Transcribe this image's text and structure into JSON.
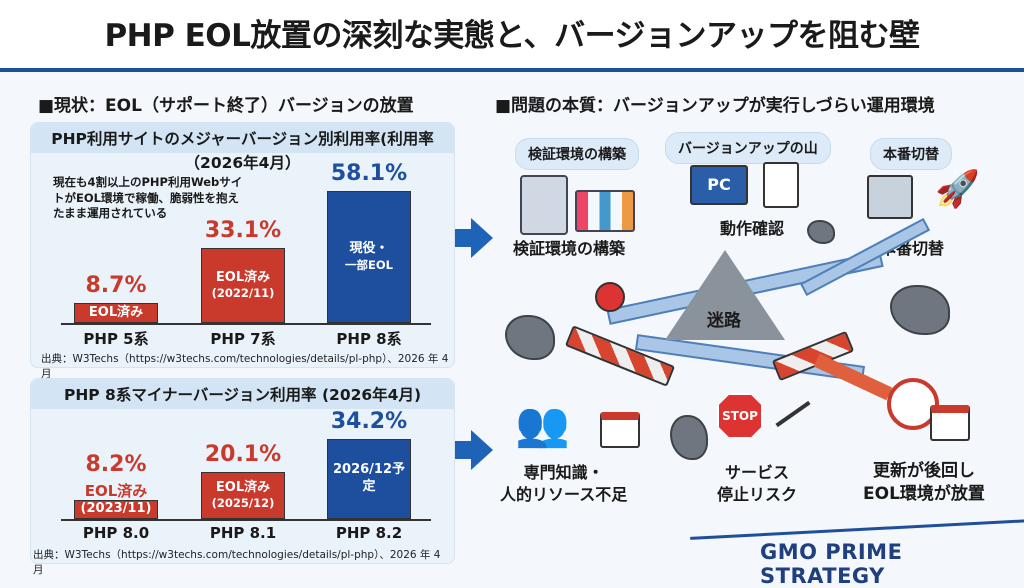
{
  "title": "PHP EOL放置の深刻な実態と、バージョンアップを阻む壁",
  "left": {
    "heading": "■現状：EOL（サポート終了）バージョンの放置",
    "note_lines": [
      "現在も4割以上のPHP利用Webサイ",
      "トがEOL環境で稼働、脆弱性を抱え",
      "たまま運用されている"
    ]
  },
  "right": {
    "heading": "■問題の本質：バージョンアップが実行しづらい運用環境",
    "pills": [
      "検証環境の構築",
      "バージョンアップの山",
      "本番切替"
    ],
    "labels": {
      "verify": "検証環境の構築",
      "check": "動作確認",
      "switch": "本番切替",
      "maze": "迷路",
      "pc": "PC",
      "stop": "STOP",
      "resource": [
        "専門知識・",
        "人的リソース不足"
      ],
      "service": [
        "サービス",
        "停止リスク"
      ],
      "postpone": [
        "更新が後回し",
        "EOL環境が放置"
      ]
    }
  },
  "footer": {
    "logo": "GMO PRIME STRATEGY"
  },
  "colors": {
    "eol": "#c93a2c",
    "current": "#1d4f9e",
    "accent": "#1f4f9b"
  },
  "chart_data": [
    {
      "type": "bar",
      "title_lines": [
        "PHP利用サイトのメジャーバージョン別利用率(利用率",
        "（2026年4月）"
      ],
      "categories": [
        "PHP 5系",
        "PHP 7系",
        "PHP 8系"
      ],
      "values": [
        8.7,
        33.1,
        58.1
      ],
      "value_labels": [
        "8.7%",
        "33.1%",
        "58.1%"
      ],
      "bar_labels": [
        [
          "EOL済み"
        ],
        [
          "EOL済み",
          "(2022/11)"
        ],
        [
          "現役・",
          "一部EOL"
        ]
      ],
      "status": [
        "eol",
        "eol",
        "current"
      ],
      "ylim": [
        0,
        60
      ],
      "grid": false,
      "source": "出典：W3Techs（https://w3techs.com/technologies/details/pl-php）、2026 年 4 月"
    },
    {
      "type": "bar",
      "title_lines": [
        "PHP 8系マイナーバージョン利用率 (2026年4月)"
      ],
      "categories": [
        "PHP 8.0",
        "PHP 8.1",
        "PHP 8.2"
      ],
      "values": [
        8.2,
        20.1,
        34.2
      ],
      "value_labels": [
        "8.2%",
        "20.1%",
        "34.2%"
      ],
      "above_labels": [
        "EOL済み",
        "",
        ""
      ],
      "bar_labels": [
        [
          "(2023/11)"
        ],
        [
          "EOL済み",
          "(2025/12)"
        ],
        [
          "2026/12予定"
        ]
      ],
      "status": [
        "eol",
        "eol",
        "current"
      ],
      "ylim": [
        0,
        35
      ],
      "grid": false,
      "source": "出典：W3Techs（https://w3techs.com/technologies/details/pl-php）、2026 年 4 月"
    }
  ]
}
